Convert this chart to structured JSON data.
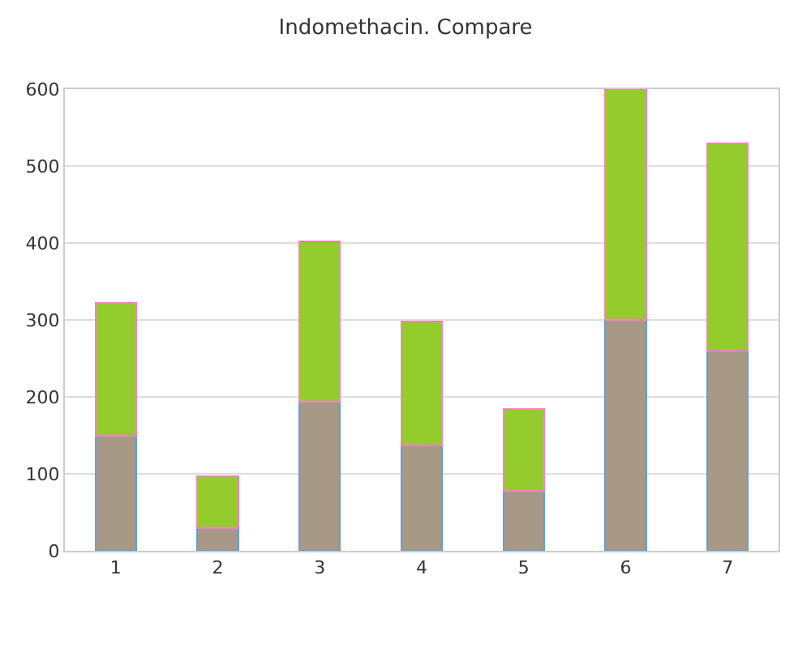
{
  "chart_data": {
    "type": "bar",
    "title": "Indomethacin. Compare",
    "stacked": true,
    "categories": [
      "1",
      "2",
      "3",
      "4",
      "5",
      "6",
      "7"
    ],
    "series": [
      {
        "color": "#a89886",
        "values": [
          150,
          30,
          194,
          137,
          78,
          300,
          260
        ]
      },
      {
        "color": "#93cc2c",
        "values": [
          172,
          67,
          208,
          161,
          106,
          300,
          269
        ]
      }
    ],
    "ylim": [
      0,
      600
    ],
    "yticks": [
      0,
      100,
      200,
      300,
      400,
      500,
      600
    ],
    "grid": "y",
    "legend": false
  }
}
